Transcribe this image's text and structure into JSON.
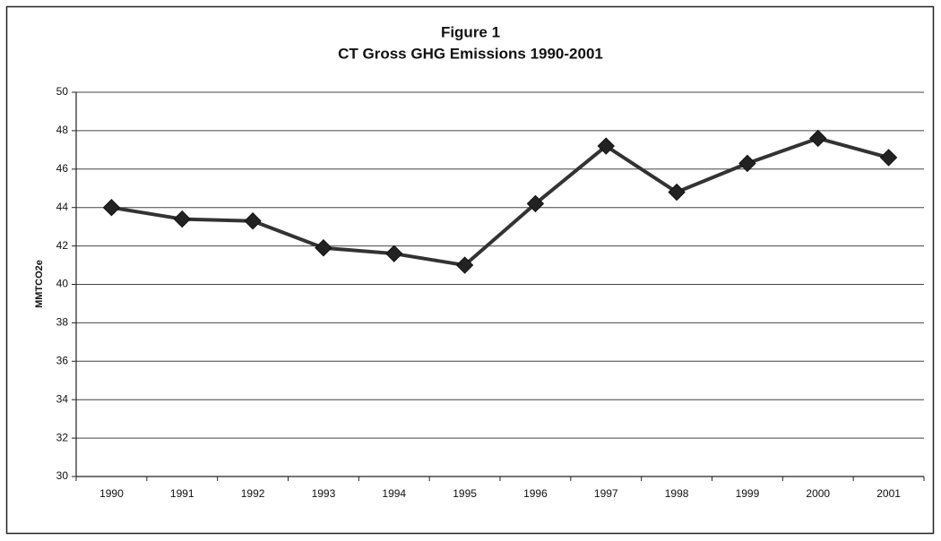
{
  "chart_data": {
    "type": "line",
    "title": "Figure 1",
    "subtitle": "CT Gross GHG Emissions 1990-2001",
    "y_label": "MMTCO2e",
    "categories": [
      "1990",
      "1991",
      "1992",
      "1993",
      "1994",
      "1995",
      "1996",
      "1997",
      "1998",
      "1999",
      "2000",
      "2001"
    ],
    "series": [
      {
        "name": "CT Gross GHG Emissions",
        "color": "#333333",
        "values": [
          44.0,
          43.4,
          43.3,
          41.9,
          41.6,
          41.0,
          44.2,
          47.2,
          44.8,
          46.3,
          47.6,
          46.6
        ]
      }
    ],
    "ylim": [
      30,
      50
    ],
    "yticks": [
      30,
      32,
      34,
      36,
      38,
      40,
      42,
      44,
      46,
      48,
      50
    ],
    "grid": true
  }
}
